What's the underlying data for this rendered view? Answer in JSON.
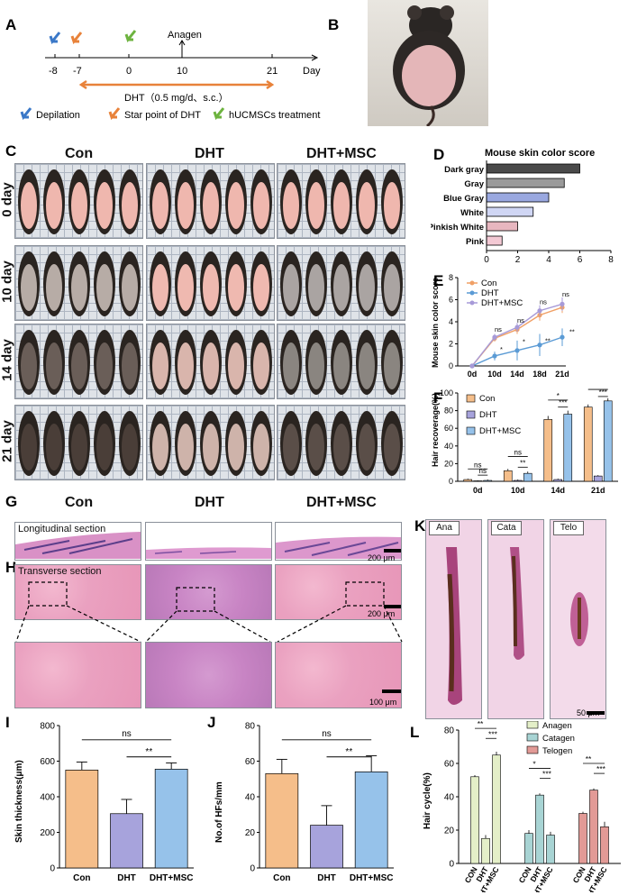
{
  "panels": {
    "A": "A",
    "B": "B",
    "C": "C",
    "D": "D",
    "E": "E",
    "F": "F",
    "G": "G",
    "H": "H",
    "I": "I",
    "J": "J",
    "K": "K",
    "L": "L"
  },
  "timeline": {
    "ticks": [
      "-8",
      "-7",
      "0",
      "10",
      "21"
    ],
    "day_label": "Day",
    "anagen_label": "Anagen",
    "dht_dose": "DHT（0.5 mg/d、s.c.）",
    "legend_depilation": "Depilation",
    "legend_dht": "Star point of DHT",
    "legend_treatment": "hUCMSCs treatment",
    "colors": {
      "depilation": "#3a78c8",
      "dht": "#e8823a",
      "treatment": "#6db33f"
    }
  },
  "photo_grid": {
    "columns": [
      "Con",
      "DHT",
      "DHT+MSC"
    ],
    "rows": [
      "0 day",
      "10 day",
      "14 day",
      "21 day"
    ]
  },
  "histology": {
    "columns": [
      "Con",
      "DHT",
      "DHT+MSC"
    ],
    "longitudinal_label": "Longitudinal section",
    "transverse_label": "Transverse section",
    "scale_200": "200 μm",
    "scale_100": "100 μm",
    "follicle_labels": [
      "Ana",
      "Cata",
      "Telo"
    ],
    "scale_50": "50 μm"
  },
  "chart_data": [
    {
      "id": "D",
      "type": "bar",
      "orientation": "horizontal",
      "title": "Mouse skin color score",
      "categories": [
        "Dark gray",
        "Gray",
        "Blue Gray",
        "White",
        "Pinkish White",
        "Pink"
      ],
      "values": [
        6,
        5,
        4,
        3,
        2,
        1
      ],
      "colors": [
        "#4a4a4a",
        "#9a9a9a",
        "#9aa8e0",
        "#d0d6f4",
        "#e7b6bf",
        "#f3c9d4"
      ],
      "xlim": [
        0,
        8
      ],
      "xticks": [
        "0",
        "2",
        "4",
        "6",
        "8"
      ]
    },
    {
      "id": "E",
      "type": "line",
      "ylabel": "Mouse skin color score",
      "categories": [
        "0d",
        "10d",
        "14d",
        "18d",
        "21d"
      ],
      "ylim": [
        0,
        8
      ],
      "yticks": [
        "0",
        "2",
        "4",
        "6",
        "8"
      ],
      "series": [
        {
          "name": "Con",
          "color": "#f0a066",
          "values": [
            0,
            2.5,
            3.3,
            4.6,
            5.3
          ],
          "err": [
            0,
            0.3,
            0.4,
            0.5,
            0.5
          ]
        },
        {
          "name": "DHT",
          "color": "#5b9bd5",
          "values": [
            0,
            0.9,
            1.4,
            1.9,
            2.6
          ],
          "err": [
            0,
            0.4,
            0.9,
            1.0,
            0.8
          ]
        },
        {
          "name": "DHT+MSC",
          "color": "#a79ad8",
          "values": [
            0,
            2.6,
            3.5,
            5.0,
            5.6
          ],
          "err": [
            0,
            0.3,
            0.4,
            0.5,
            0.6
          ]
        }
      ],
      "annotations": [
        "ns",
        "ns",
        "ns",
        "ns",
        "*",
        "*",
        "**",
        "**"
      ]
    },
    {
      "id": "F",
      "type": "bar",
      "ylabel": "Hair recoverage(%)",
      "categories": [
        "0d",
        "10d",
        "14d",
        "21d"
      ],
      "ylim": [
        0,
        100
      ],
      "yticks": [
        "0",
        "20",
        "40",
        "60",
        "80",
        "100"
      ],
      "series": [
        {
          "name": "Con",
          "color": "#f5be8a",
          "values": [
            2,
            12,
            70,
            84
          ],
          "err": [
            1,
            2,
            4,
            3
          ]
        },
        {
          "name": "DHT",
          "color": "#a7a3dc",
          "values": [
            0.5,
            1,
            2,
            6
          ],
          "err": [
            0.5,
            1,
            1,
            1
          ]
        },
        {
          "name": "DHT+MSC",
          "color": "#96c2ea",
          "values": [
            1,
            9,
            76,
            91
          ],
          "err": [
            1,
            2,
            4,
            3
          ]
        }
      ],
      "annotations": [
        "ns",
        "ns",
        "ns",
        "**",
        "*",
        "***",
        "*",
        "***"
      ]
    },
    {
      "id": "I",
      "type": "bar",
      "ylabel": "Skin thickness(μm)",
      "categories": [
        "Con",
        "DHT",
        "DHT+MSC"
      ],
      "values": [
        550,
        305,
        555
      ],
      "err": [
        45,
        80,
        35
      ],
      "colors": [
        "#f5be8a",
        "#a7a3dc",
        "#96c2ea"
      ],
      "ylim": [
        0,
        800
      ],
      "yticks": [
        "0",
        "200",
        "400",
        "600",
        "800"
      ],
      "annotations": [
        "ns",
        "**"
      ]
    },
    {
      "id": "J",
      "type": "bar",
      "ylabel": "No.of HFs/mm",
      "categories": [
        "Con",
        "DHT",
        "DHT+MSC"
      ],
      "values": [
        53,
        24,
        54
      ],
      "err": [
        8,
        11,
        9
      ],
      "colors": [
        "#f5be8a",
        "#a7a3dc",
        "#96c2ea"
      ],
      "ylim": [
        0,
        80
      ],
      "yticks": [
        "0",
        "20",
        "40",
        "60",
        "80"
      ],
      "annotations": [
        "ns",
        "**"
      ]
    },
    {
      "id": "L",
      "type": "bar",
      "ylabel": "Hair cycle(%)",
      "groups": [
        "Anagen",
        "Catagen",
        "Telogen"
      ],
      "categories": [
        "CON",
        "DHT",
        "DHT+MSC"
      ],
      "group_colors": [
        "#e4efc8",
        "#a8d4d4",
        "#e29a96"
      ],
      "values": [
        [
          52,
          15,
          65
        ],
        [
          18,
          41,
          17
        ],
        [
          30,
          44,
          22
        ]
      ],
      "err": [
        [
          1,
          2,
          2
        ],
        [
          2,
          1,
          2
        ],
        [
          1,
          1,
          3
        ]
      ],
      "ylim": [
        0,
        80
      ],
      "yticks": [
        "0",
        "20",
        "40",
        "60",
        "80"
      ],
      "annotations": [
        "**",
        "***",
        "*",
        "***",
        "**",
        "***"
      ]
    }
  ]
}
